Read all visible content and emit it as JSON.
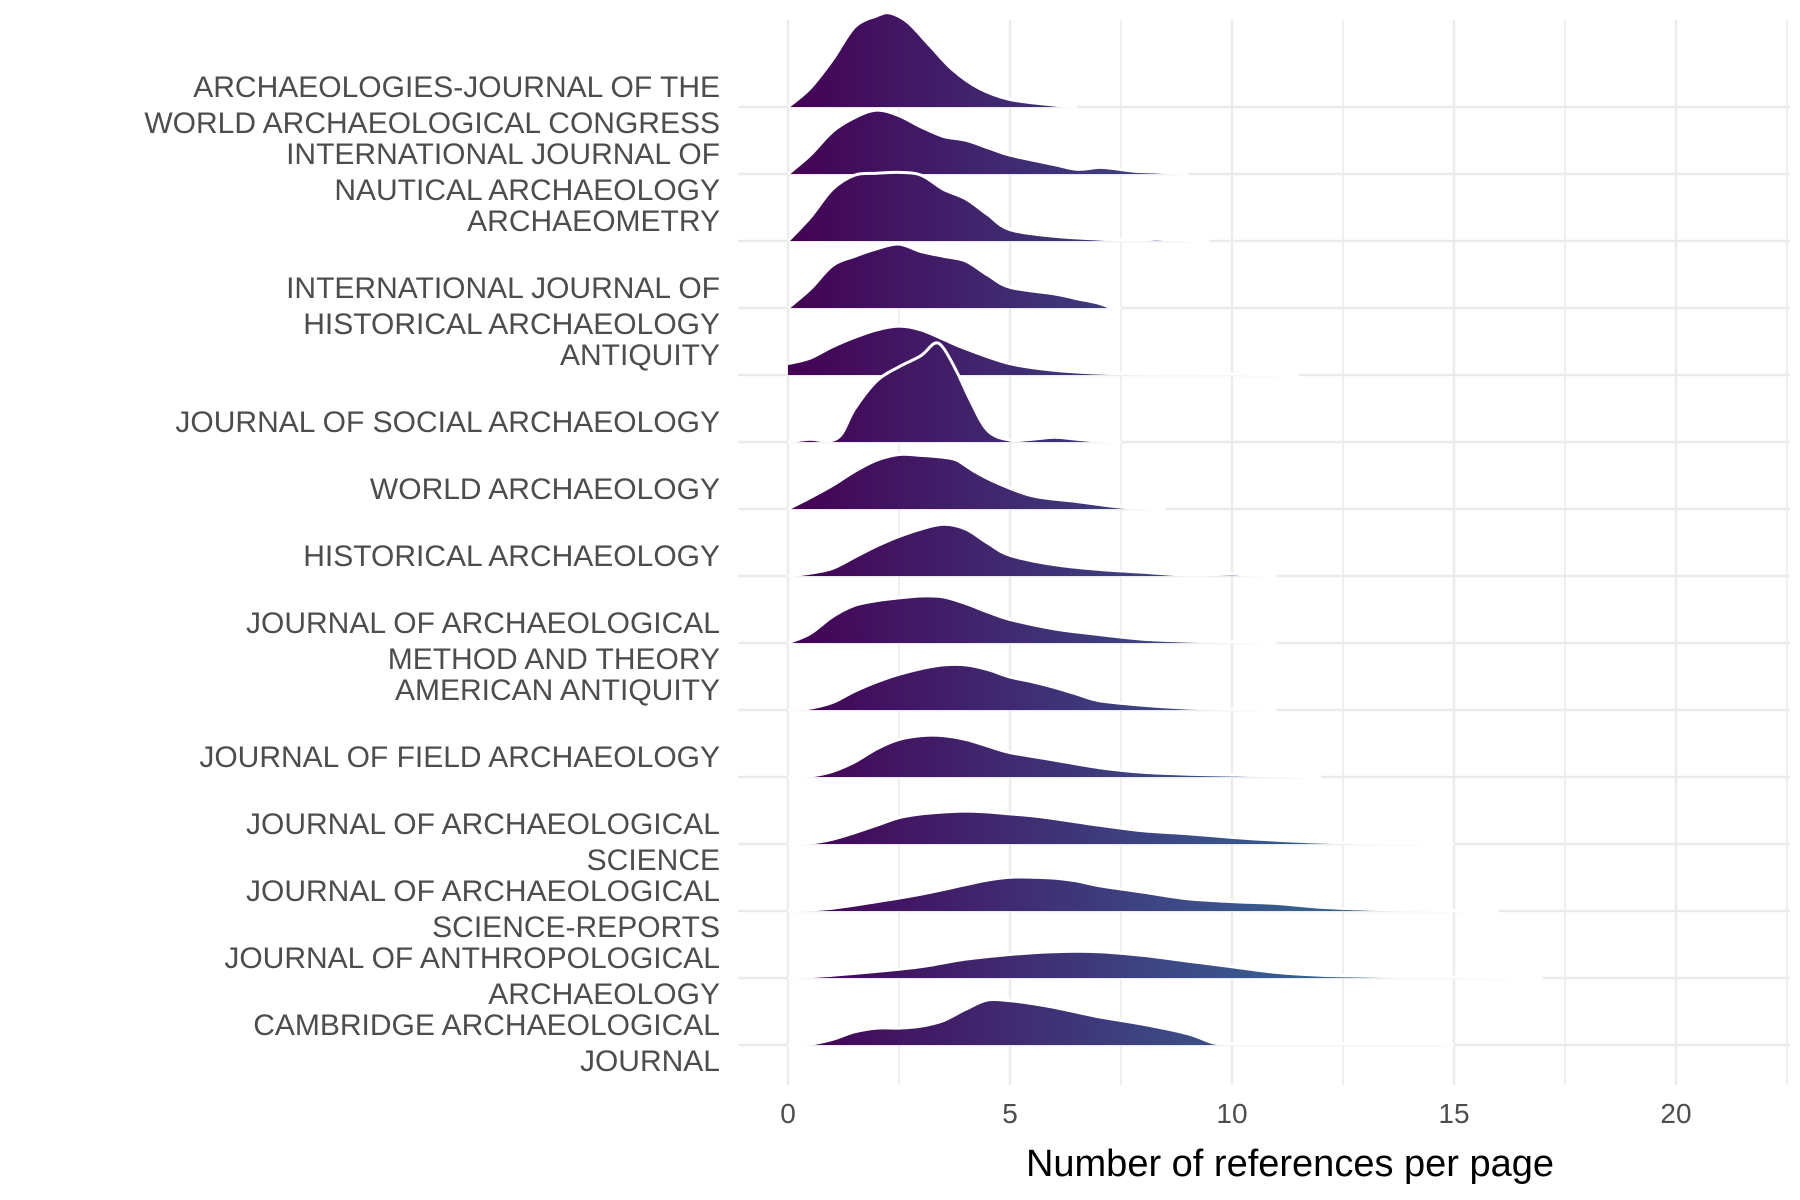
{
  "chart_data": {
    "type": "ridgeline",
    "title": "",
    "xlabel": "Number of references per page",
    "ylabel": "",
    "xlim": [
      -1.1,
      22.4
    ],
    "xticks": [
      0,
      5,
      10,
      15,
      20
    ],
    "grid": true,
    "legend": "none",
    "fill_gradient": [
      "#440154",
      "#3b528b",
      "#21908c"
    ],
    "outline_color": "#ffffff",
    "categories": [
      {
        "label": [
          "ARCHAEOLOGIES-JOURNAL OF THE",
          "WORLD ARCHAEOLOGICAL CONGRESS"
        ],
        "density": [
          [
            0,
            0
          ],
          [
            0.5,
            0.2
          ],
          [
            1,
            0.5
          ],
          [
            1.5,
            0.85
          ],
          [
            2,
            0.97
          ],
          [
            2.3,
            1.0
          ],
          [
            2.7,
            0.9
          ],
          [
            3.2,
            0.65
          ],
          [
            3.7,
            0.4
          ],
          [
            4.3,
            0.2
          ],
          [
            5,
            0.08
          ],
          [
            6,
            0.02
          ],
          [
            6.5,
            0
          ]
        ]
      },
      {
        "label": [
          "INTERNATIONAL JOURNAL OF",
          "NAUTICAL ARCHAEOLOGY"
        ],
        "density": [
          [
            0,
            0
          ],
          [
            0.5,
            0.2
          ],
          [
            1,
            0.45
          ],
          [
            1.5,
            0.6
          ],
          [
            2,
            0.68
          ],
          [
            2.5,
            0.62
          ],
          [
            3,
            0.5
          ],
          [
            3.5,
            0.4
          ],
          [
            4,
            0.36
          ],
          [
            4.5,
            0.28
          ],
          [
            5,
            0.2
          ],
          [
            6,
            0.1
          ],
          [
            6.5,
            0.05
          ],
          [
            7,
            0.07
          ],
          [
            7.3,
            0.06
          ],
          [
            7.8,
            0.03
          ],
          [
            8.3,
            0.02
          ],
          [
            9,
            0
          ]
        ]
      },
      {
        "label": [
          "ARCHAEOMETRY"
        ],
        "density": [
          [
            0,
            0
          ],
          [
            0.5,
            0.25
          ],
          [
            1,
            0.55
          ],
          [
            1.5,
            0.7
          ],
          [
            2,
            0.72
          ],
          [
            2.5,
            0.73
          ],
          [
            3,
            0.7
          ],
          [
            3.5,
            0.55
          ],
          [
            4,
            0.45
          ],
          [
            4.5,
            0.28
          ],
          [
            5,
            0.12
          ],
          [
            6,
            0.05
          ],
          [
            7,
            0.02
          ],
          [
            7.5,
            0.01
          ],
          [
            8,
            0.01
          ],
          [
            8.3,
            0.02
          ],
          [
            8.6,
            0.01
          ],
          [
            9.5,
            0
          ]
        ]
      },
      {
        "label": [
          "INTERNATIONAL JOURNAL OF",
          "HISTORICAL ARCHAEOLOGY"
        ],
        "density": [
          [
            0,
            0
          ],
          [
            0.5,
            0.2
          ],
          [
            1,
            0.45
          ],
          [
            1.5,
            0.55
          ],
          [
            2,
            0.63
          ],
          [
            2.5,
            0.68
          ],
          [
            3,
            0.6
          ],
          [
            3.5,
            0.55
          ],
          [
            4,
            0.5
          ],
          [
            4.5,
            0.35
          ],
          [
            5,
            0.22
          ],
          [
            6,
            0.15
          ],
          [
            6.5,
            0.1
          ],
          [
            7,
            0.05
          ],
          [
            7.3,
            0
          ],
          [
            7.5,
            0
          ]
        ]
      },
      {
        "label": [
          "ANTIQUITY"
        ],
        "density": [
          [
            0,
            0.12
          ],
          [
            0.5,
            0.18
          ],
          [
            1,
            0.3
          ],
          [
            1.5,
            0.4
          ],
          [
            2,
            0.48
          ],
          [
            2.5,
            0.52
          ],
          [
            3,
            0.48
          ],
          [
            3.5,
            0.38
          ],
          [
            4,
            0.28
          ],
          [
            5,
            0.12
          ],
          [
            6,
            0.05
          ],
          [
            7,
            0.02
          ],
          [
            8.5,
            0.01
          ],
          [
            10,
            0.01
          ],
          [
            11.5,
            0
          ]
        ]
      },
      {
        "label": [
          "JOURNAL OF SOCIAL ARCHAEOLOGY"
        ],
        "density": [
          [
            0,
            0
          ],
          [
            0.5,
            0.03
          ],
          [
            0.9,
            0.01
          ],
          [
            1.2,
            0.08
          ],
          [
            1.5,
            0.35
          ],
          [
            2,
            0.65
          ],
          [
            2.5,
            0.8
          ],
          [
            3,
            0.92
          ],
          [
            3.3,
            1.05
          ],
          [
            3.5,
            1.0
          ],
          [
            3.8,
            0.75
          ],
          [
            4.1,
            0.45
          ],
          [
            4.5,
            0.12
          ],
          [
            5,
            0.02
          ],
          [
            5.5,
            0.03
          ],
          [
            6,
            0.05
          ],
          [
            6.5,
            0.03
          ],
          [
            7,
            0.01
          ],
          [
            7.5,
            0
          ]
        ]
      },
      {
        "label": [
          "WORLD ARCHAEOLOGY"
        ],
        "density": [
          [
            0,
            0
          ],
          [
            0.5,
            0.12
          ],
          [
            1,
            0.25
          ],
          [
            1.5,
            0.4
          ],
          [
            2,
            0.52
          ],
          [
            2.5,
            0.58
          ],
          [
            3,
            0.57
          ],
          [
            3.5,
            0.55
          ],
          [
            3.8,
            0.52
          ],
          [
            4.2,
            0.4
          ],
          [
            4.7,
            0.28
          ],
          [
            5.5,
            0.14
          ],
          [
            6.5,
            0.08
          ],
          [
            7.5,
            0.02
          ],
          [
            8.5,
            0
          ]
        ]
      },
      {
        "label": [
          "HISTORICAL ARCHAEOLOGY"
        ],
        "density": [
          [
            0,
            0
          ],
          [
            0.5,
            0.03
          ],
          [
            1,
            0.08
          ],
          [
            1.5,
            0.2
          ],
          [
            2,
            0.32
          ],
          [
            2.5,
            0.42
          ],
          [
            3,
            0.5
          ],
          [
            3.5,
            0.55
          ],
          [
            4,
            0.5
          ],
          [
            4.5,
            0.35
          ],
          [
            5,
            0.22
          ],
          [
            6,
            0.12
          ],
          [
            7,
            0.07
          ],
          [
            8,
            0.04
          ],
          [
            9,
            0.01
          ],
          [
            10,
            0.02
          ],
          [
            10.3,
            0.01
          ],
          [
            11,
            0
          ]
        ]
      },
      {
        "label": [
          "JOURNAL OF ARCHAEOLOGICAL",
          "METHOD AND THEORY"
        ],
        "density": [
          [
            0,
            0
          ],
          [
            0.5,
            0.1
          ],
          [
            1,
            0.28
          ],
          [
            1.5,
            0.4
          ],
          [
            2,
            0.45
          ],
          [
            2.5,
            0.48
          ],
          [
            3,
            0.5
          ],
          [
            3.5,
            0.49
          ],
          [
            4,
            0.42
          ],
          [
            4.5,
            0.33
          ],
          [
            5,
            0.25
          ],
          [
            6,
            0.15
          ],
          [
            7,
            0.09
          ],
          [
            8,
            0.04
          ],
          [
            9,
            0.02
          ],
          [
            10,
            0.01
          ],
          [
            11,
            0
          ]
        ]
      },
      {
        "label": [
          "AMERICAN ANTIQUITY"
        ],
        "density": [
          [
            0,
            0
          ],
          [
            0.5,
            0.02
          ],
          [
            1,
            0.08
          ],
          [
            1.5,
            0.2
          ],
          [
            2,
            0.3
          ],
          [
            2.5,
            0.38
          ],
          [
            3,
            0.44
          ],
          [
            3.5,
            0.48
          ],
          [
            4,
            0.48
          ],
          [
            4.5,
            0.43
          ],
          [
            5,
            0.35
          ],
          [
            5.5,
            0.3
          ],
          [
            6,
            0.24
          ],
          [
            6.5,
            0.17
          ],
          [
            7,
            0.1
          ],
          [
            8,
            0.05
          ],
          [
            9,
            0.02
          ],
          [
            10,
            0.01
          ],
          [
            11,
            0
          ]
        ]
      },
      {
        "label": [
          "JOURNAL OF FIELD ARCHAEOLOGY"
        ],
        "density": [
          [
            0,
            0
          ],
          [
            0.5,
            0.01
          ],
          [
            1,
            0.06
          ],
          [
            1.5,
            0.16
          ],
          [
            2,
            0.3
          ],
          [
            2.5,
            0.4
          ],
          [
            3,
            0.44
          ],
          [
            3.5,
            0.44
          ],
          [
            4,
            0.4
          ],
          [
            4.5,
            0.33
          ],
          [
            5,
            0.26
          ],
          [
            6,
            0.18
          ],
          [
            7,
            0.1
          ],
          [
            8,
            0.05
          ],
          [
            9,
            0.03
          ],
          [
            10,
            0.02
          ],
          [
            11,
            0.01
          ],
          [
            12,
            0
          ]
        ]
      },
      {
        "label": [
          "JOURNAL OF ARCHAEOLOGICAL",
          "SCIENCE"
        ],
        "density": [
          [
            0,
            0
          ],
          [
            0.5,
            0.01
          ],
          [
            1,
            0.05
          ],
          [
            1.5,
            0.12
          ],
          [
            2,
            0.2
          ],
          [
            2.5,
            0.28
          ],
          [
            3,
            0.32
          ],
          [
            3.5,
            0.34
          ],
          [
            4,
            0.35
          ],
          [
            4.5,
            0.34
          ],
          [
            5,
            0.32
          ],
          [
            5.5,
            0.3
          ],
          [
            6,
            0.27
          ],
          [
            7,
            0.2
          ],
          [
            8,
            0.14
          ],
          [
            9,
            0.11
          ],
          [
            10,
            0.07
          ],
          [
            11,
            0.04
          ],
          [
            12,
            0.02
          ],
          [
            13,
            0.01
          ],
          [
            15,
            0
          ]
        ]
      },
      {
        "label": [
          "JOURNAL OF ARCHAEOLOGICAL",
          "SCIENCE-REPORTS"
        ],
        "density": [
          [
            0,
            0
          ],
          [
            1,
            0.03
          ],
          [
            2,
            0.1
          ],
          [
            3,
            0.18
          ],
          [
            4,
            0.28
          ],
          [
            4.5,
            0.33
          ],
          [
            5,
            0.36
          ],
          [
            5.5,
            0.36
          ],
          [
            6,
            0.35
          ],
          [
            6.5,
            0.32
          ],
          [
            7,
            0.27
          ],
          [
            8,
            0.2
          ],
          [
            9,
            0.13
          ],
          [
            10,
            0.1
          ],
          [
            11,
            0.08
          ],
          [
            12,
            0.04
          ],
          [
            13,
            0.02
          ],
          [
            14,
            0.01
          ],
          [
            16,
            0
          ]
        ]
      },
      {
        "label": [
          "JOURNAL OF ANTHROPOLOGICAL",
          "ARCHAEOLOGY"
        ],
        "density": [
          [
            0,
            0
          ],
          [
            1,
            0.03
          ],
          [
            2,
            0.07
          ],
          [
            3,
            0.12
          ],
          [
            4,
            0.2
          ],
          [
            5,
            0.25
          ],
          [
            6,
            0.28
          ],
          [
            7,
            0.28
          ],
          [
            8,
            0.24
          ],
          [
            9,
            0.18
          ],
          [
            10,
            0.12
          ],
          [
            11,
            0.06
          ],
          [
            12,
            0.03
          ],
          [
            13,
            0.02
          ],
          [
            14,
            0.01
          ],
          [
            15,
            0.01
          ],
          [
            17,
            0
          ]
        ]
      },
      {
        "label": [
          "CAMBRIDGE ARCHAEOLOGICAL",
          "JOURNAL"
        ],
        "density": [
          [
            0,
            0
          ],
          [
            0.5,
            0.01
          ],
          [
            1,
            0.06
          ],
          [
            1.5,
            0.14
          ],
          [
            2,
            0.18
          ],
          [
            2.5,
            0.18
          ],
          [
            3,
            0.2
          ],
          [
            3.5,
            0.26
          ],
          [
            4,
            0.38
          ],
          [
            4.5,
            0.48
          ],
          [
            5,
            0.47
          ],
          [
            5.5,
            0.44
          ],
          [
            6,
            0.4
          ],
          [
            7,
            0.3
          ],
          [
            8,
            0.22
          ],
          [
            9,
            0.12
          ],
          [
            9.6,
            0.02
          ],
          [
            10,
            0.01
          ],
          [
            11,
            0.01
          ],
          [
            12,
            0.01
          ],
          [
            13,
            0.01
          ],
          [
            14,
            0.01
          ],
          [
            14.6,
            0.01
          ],
          [
            15,
            0
          ]
        ]
      }
    ]
  }
}
